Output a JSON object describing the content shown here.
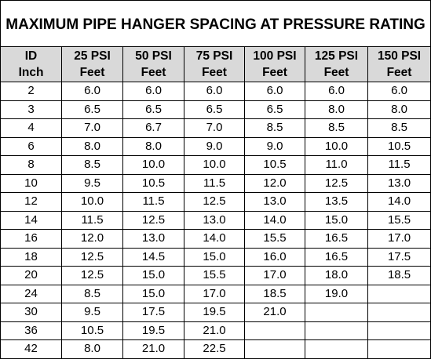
{
  "title": "MAXIMUM PIPE HANGER SPACING AT PRESSURE RATING",
  "headers": [
    {
      "line1": "ID",
      "line2": "Inch"
    },
    {
      "line1": "25 PSI",
      "line2": "Feet"
    },
    {
      "line1": "50 PSI",
      "line2": "Feet"
    },
    {
      "line1": "75 PSI",
      "line2": "Feet"
    },
    {
      "line1": "100 PSI",
      "line2": "Feet"
    },
    {
      "line1": "125 PSI",
      "line2": "Feet"
    },
    {
      "line1": "150 PSI",
      "line2": "Feet"
    }
  ],
  "rows": [
    [
      "2",
      "6.0",
      "6.0",
      "6.0",
      "6.0",
      "6.0",
      "6.0"
    ],
    [
      "3",
      "6.5",
      "6.5",
      "6.5",
      "6.5",
      "8.0",
      "8.0"
    ],
    [
      "4",
      "7.0",
      "6.7",
      "7.0",
      "8.5",
      "8.5",
      "8.5"
    ],
    [
      "6",
      "8.0",
      "8.0",
      "9.0",
      "9.0",
      "10.0",
      "10.5"
    ],
    [
      "8",
      "8.5",
      "10.0",
      "10.0",
      "10.5",
      "11.0",
      "11.5"
    ],
    [
      "10",
      "9.5",
      "10.5",
      "11.5",
      "12.0",
      "12.5",
      "13.0"
    ],
    [
      "12",
      "10.0",
      "11.5",
      "12.5",
      "13.0",
      "13.5",
      "14.0"
    ],
    [
      "14",
      "11.5",
      "12.5",
      "13.0",
      "14.0",
      "15.0",
      "15.5"
    ],
    [
      "16",
      "12.0",
      "13.0",
      "14.0",
      "15.5",
      "16.5",
      "17.0"
    ],
    [
      "18",
      "12.5",
      "14.5",
      "15.0",
      "16.0",
      "16.5",
      "17.5"
    ],
    [
      "20",
      "12.5",
      "15.0",
      "15.5",
      "17.0",
      "18.0",
      "18.5"
    ],
    [
      "24",
      "8.5",
      "15.0",
      "17.0",
      "18.5",
      "19.0",
      ""
    ],
    [
      "30",
      "9.5",
      "17.5",
      "19.5",
      "21.0",
      "",
      ""
    ],
    [
      "36",
      "10.5",
      "19.5",
      "21.0",
      "",
      "",
      ""
    ],
    [
      "42",
      "8.0",
      "21.0",
      "22.5",
      "",
      "",
      ""
    ]
  ],
  "colors": {
    "header_background": "#d9d9d9",
    "border": "#000000"
  }
}
